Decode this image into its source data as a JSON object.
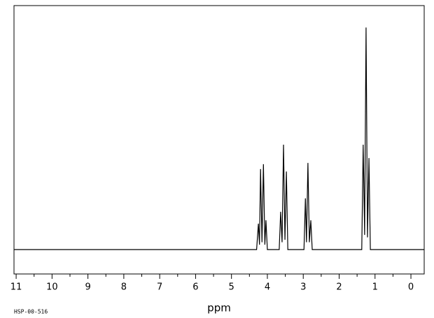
{
  "chart_data": {
    "type": "line",
    "x_label": "ppm",
    "annotation": "HSP-00-516",
    "x": [
      11.06,
      4.3,
      4.25,
      4.22,
      4.19,
      4.15,
      4.11,
      4.07,
      4.04,
      4.0,
      3.67,
      3.63,
      3.59,
      3.55,
      3.51,
      3.47,
      3.43,
      2.98,
      2.94,
      2.91,
      2.87,
      2.83,
      2.79,
      2.75,
      1.37,
      1.33,
      1.29,
      1.25,
      1.21,
      1.17,
      1.13,
      -0.37
    ],
    "y": [
      0,
      0,
      10.6,
      2,
      33,
      3,
      35,
      2,
      12,
      0,
      0,
      15.5,
      3,
      43,
      4,
      32,
      0,
      0,
      21,
      3,
      35.5,
      3,
      12,
      0,
      0,
      43,
      6,
      91,
      5,
      37.5,
      0,
      0
    ],
    "color": "#000000",
    "xlim": [
      11.06,
      -0.37
    ],
    "ylim": [
      -10,
      100
    ],
    "xticks": [
      11,
      10,
      9,
      8,
      7,
      6,
      5,
      4,
      3,
      2,
      1,
      0
    ],
    "xminorticks": [
      10.5,
      9.5,
      8.5,
      7.5,
      6.5,
      5.5,
      4.5,
      3.5,
      2.5,
      1.5,
      0.5
    ]
  }
}
